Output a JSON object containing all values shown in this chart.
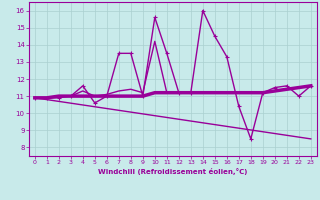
{
  "xlabel": "Windchill (Refroidissement éolien,°C)",
  "background_color": "#c8eaea",
  "grid_color": "#aad0d0",
  "line_color": "#990099",
  "x_ticks": [
    0,
    1,
    2,
    3,
    4,
    5,
    6,
    7,
    8,
    9,
    10,
    11,
    12,
    13,
    14,
    15,
    16,
    17,
    18,
    19,
    20,
    21,
    22,
    23
  ],
  "y_ticks": [
    8,
    9,
    10,
    11,
    12,
    13,
    14,
    15,
    16
  ],
  "ylim": [
    7.5,
    16.5
  ],
  "xlim": [
    -0.5,
    23.5
  ],
  "series": [
    {
      "x": [
        0,
        1,
        2,
        3,
        4,
        5,
        6,
        7,
        8,
        9,
        10,
        11,
        12,
        13,
        14,
        15,
        16,
        17,
        18,
        19,
        20,
        21,
        22,
        23
      ],
      "y": [
        10.9,
        10.9,
        10.9,
        11.0,
        11.6,
        10.6,
        11.0,
        13.5,
        13.5,
        11.0,
        15.6,
        13.5,
        11.2,
        11.2,
        16.0,
        14.5,
        13.3,
        10.4,
        8.5,
        11.2,
        11.5,
        11.6,
        11.0,
        11.6
      ],
      "lw": 1.0,
      "marker": "+"
    },
    {
      "x": [
        0,
        1,
        2,
        3,
        4,
        5,
        6,
        7,
        8,
        9,
        10,
        11,
        12,
        13,
        14,
        15,
        16,
        17,
        18,
        19,
        20,
        21,
        22,
        23
      ],
      "y": [
        10.9,
        10.9,
        11.0,
        11.0,
        11.0,
        11.0,
        11.0,
        11.0,
        11.0,
        11.0,
        11.2,
        11.2,
        11.2,
        11.2,
        11.2,
        11.2,
        11.2,
        11.2,
        11.2,
        11.2,
        11.3,
        11.4,
        11.5,
        11.6
      ],
      "lw": 2.5,
      "marker": null
    },
    {
      "x": [
        0,
        1,
        2,
        3,
        4,
        5,
        6,
        7,
        8,
        9,
        10,
        11,
        12,
        13,
        14,
        15,
        16,
        17,
        18,
        19,
        20,
        21,
        22,
        23
      ],
      "y": [
        10.9,
        10.9,
        11.0,
        11.0,
        11.3,
        11.0,
        11.1,
        11.3,
        11.4,
        11.2,
        14.2,
        11.2,
        11.2,
        11.2,
        11.2,
        11.2,
        11.2,
        11.2,
        11.2,
        11.2,
        11.3,
        11.4,
        11.5,
        11.6
      ],
      "lw": 1.0,
      "marker": null
    },
    {
      "x": [
        0,
        23
      ],
      "y": [
        10.9,
        8.5
      ],
      "lw": 1.0,
      "marker": null
    }
  ]
}
